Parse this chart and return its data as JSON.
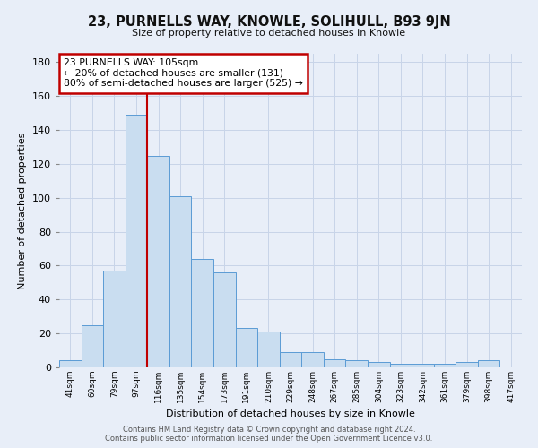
{
  "title": "23, PURNELLS WAY, KNOWLE, SOLIHULL, B93 9JN",
  "subtitle": "Size of property relative to detached houses in Knowle",
  "xlabel": "Distribution of detached houses by size in Knowle",
  "ylabel": "Number of detached properties",
  "bar_labels": [
    "41sqm",
    "60sqm",
    "79sqm",
    "97sqm",
    "116sqm",
    "135sqm",
    "154sqm",
    "173sqm",
    "191sqm",
    "210sqm",
    "229sqm",
    "248sqm",
    "267sqm",
    "285sqm",
    "304sqm",
    "323sqm",
    "342sqm",
    "361sqm",
    "379sqm",
    "398sqm",
    "417sqm"
  ],
  "bar_values": [
    4,
    25,
    57,
    149,
    125,
    101,
    64,
    56,
    23,
    21,
    9,
    9,
    5,
    4,
    3,
    2,
    2,
    2,
    3,
    4,
    0
  ],
  "bar_color": "#c9ddf0",
  "bar_edge_color": "#5b9bd5",
  "red_line_x": 4,
  "annotation_text": "23 PURNELLS WAY: 105sqm\n← 20% of detached houses are smaller (131)\n80% of semi-detached houses are larger (525) →",
  "annotation_box_color": "#ffffff",
  "annotation_box_edge": "#c00000",
  "ylim": [
    0,
    185
  ],
  "yticks": [
    0,
    20,
    40,
    60,
    80,
    100,
    120,
    140,
    160,
    180
  ],
  "grid_color": "#c8d4e8",
  "bg_color": "#e8eef8",
  "footer1": "Contains HM Land Registry data © Crown copyright and database right 2024.",
  "footer2": "Contains public sector information licensed under the Open Government Licence v3.0."
}
